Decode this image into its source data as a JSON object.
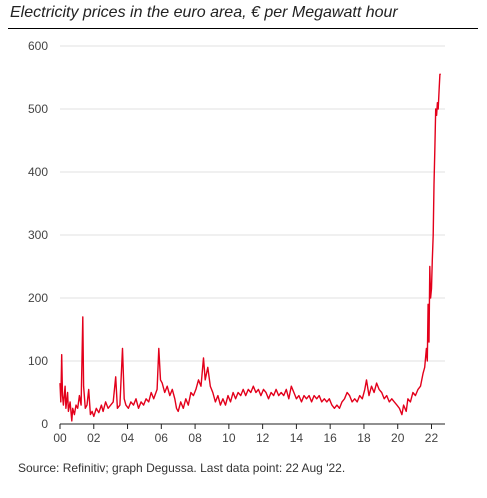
{
  "chart_data": {
    "type": "line",
    "title": "Electricity prices in the euro area, € per Megawatt hour",
    "xlabel": "",
    "ylabel": "",
    "xlim": [
      2000,
      2022.8
    ],
    "ylim": [
      0,
      600
    ],
    "grid": "horizontal",
    "x_ticks": [
      {
        "value": 2000,
        "label": "00"
      },
      {
        "value": 2002,
        "label": "02"
      },
      {
        "value": 2004,
        "label": "04"
      },
      {
        "value": 2006,
        "label": "06"
      },
      {
        "value": 2008,
        "label": "08"
      },
      {
        "value": 2010,
        "label": "10"
      },
      {
        "value": 2012,
        "label": "12"
      },
      {
        "value": 2014,
        "label": "14"
      },
      {
        "value": 2016,
        "label": "16"
      },
      {
        "value": 2018,
        "label": "18"
      },
      {
        "value": 2020,
        "label": "20"
      },
      {
        "value": 2022,
        "label": "22"
      }
    ],
    "y_ticks": [
      {
        "value": 0,
        "label": "0"
      },
      {
        "value": 100,
        "label": "100"
      },
      {
        "value": 200,
        "label": "200"
      },
      {
        "value": 300,
        "label": "300"
      },
      {
        "value": 400,
        "label": "400"
      },
      {
        "value": 500,
        "label": "500"
      },
      {
        "value": 600,
        "label": "600"
      }
    ],
    "series": [
      {
        "color": "#e3001b",
        "points": [
          [
            2000.0,
            65
          ],
          [
            2000.05,
            35
          ],
          [
            2000.1,
            110
          ],
          [
            2000.15,
            45
          ],
          [
            2000.2,
            30
          ],
          [
            2000.3,
            60
          ],
          [
            2000.35,
            25
          ],
          [
            2000.45,
            50
          ],
          [
            2000.5,
            20
          ],
          [
            2000.6,
            35
          ],
          [
            2000.7,
            5
          ],
          [
            2000.75,
            25
          ],
          [
            2000.85,
            15
          ],
          [
            2000.95,
            30
          ],
          [
            2001.05,
            25
          ],
          [
            2001.15,
            45
          ],
          [
            2001.25,
            30
          ],
          [
            2001.35,
            170
          ],
          [
            2001.4,
            60
          ],
          [
            2001.5,
            25
          ],
          [
            2001.6,
            30
          ],
          [
            2001.7,
            55
          ],
          [
            2001.8,
            15
          ],
          [
            2001.9,
            20
          ],
          [
            2002.0,
            12
          ],
          [
            2002.15,
            25
          ],
          [
            2002.3,
            18
          ],
          [
            2002.45,
            30
          ],
          [
            2002.55,
            20
          ],
          [
            2002.7,
            35
          ],
          [
            2002.85,
            25
          ],
          [
            2003.0,
            30
          ],
          [
            2003.15,
            35
          ],
          [
            2003.3,
            75
          ],
          [
            2003.4,
            25
          ],
          [
            2003.55,
            30
          ],
          [
            2003.7,
            120
          ],
          [
            2003.8,
            40
          ],
          [
            2003.9,
            30
          ],
          [
            2004.05,
            25
          ],
          [
            2004.2,
            35
          ],
          [
            2004.35,
            30
          ],
          [
            2004.5,
            40
          ],
          [
            2004.65,
            25
          ],
          [
            2004.8,
            35
          ],
          [
            2004.95,
            30
          ],
          [
            2005.1,
            40
          ],
          [
            2005.25,
            35
          ],
          [
            2005.4,
            50
          ],
          [
            2005.55,
            40
          ],
          [
            2005.75,
            55
          ],
          [
            2005.85,
            120
          ],
          [
            2005.95,
            70
          ],
          [
            2006.05,
            65
          ],
          [
            2006.2,
            50
          ],
          [
            2006.35,
            60
          ],
          [
            2006.5,
            45
          ],
          [
            2006.65,
            55
          ],
          [
            2006.8,
            40
          ],
          [
            2006.9,
            25
          ],
          [
            2007.0,
            20
          ],
          [
            2007.15,
            35
          ],
          [
            2007.3,
            25
          ],
          [
            2007.45,
            40
          ],
          [
            2007.6,
            30
          ],
          [
            2007.75,
            50
          ],
          [
            2007.9,
            45
          ],
          [
            2008.05,
            55
          ],
          [
            2008.2,
            70
          ],
          [
            2008.35,
            60
          ],
          [
            2008.5,
            105
          ],
          [
            2008.6,
            70
          ],
          [
            2008.75,
            90
          ],
          [
            2008.9,
            60
          ],
          [
            2009.05,
            50
          ],
          [
            2009.2,
            35
          ],
          [
            2009.35,
            45
          ],
          [
            2009.5,
            30
          ],
          [
            2009.65,
            40
          ],
          [
            2009.8,
            30
          ],
          [
            2009.95,
            45
          ],
          [
            2010.1,
            35
          ],
          [
            2010.25,
            50
          ],
          [
            2010.4,
            40
          ],
          [
            2010.55,
            50
          ],
          [
            2010.7,
            45
          ],
          [
            2010.85,
            55
          ],
          [
            2011.0,
            45
          ],
          [
            2011.15,
            55
          ],
          [
            2011.3,
            50
          ],
          [
            2011.45,
            60
          ],
          [
            2011.6,
            50
          ],
          [
            2011.75,
            55
          ],
          [
            2011.9,
            45
          ],
          [
            2012.05,
            55
          ],
          [
            2012.2,
            50
          ],
          [
            2012.35,
            40
          ],
          [
            2012.5,
            50
          ],
          [
            2012.65,
            45
          ],
          [
            2012.8,
            55
          ],
          [
            2012.95,
            45
          ],
          [
            2013.1,
            50
          ],
          [
            2013.25,
            45
          ],
          [
            2013.4,
            55
          ],
          [
            2013.55,
            40
          ],
          [
            2013.7,
            60
          ],
          [
            2013.85,
            50
          ],
          [
            2014.0,
            40
          ],
          [
            2014.15,
            45
          ],
          [
            2014.3,
            35
          ],
          [
            2014.45,
            45
          ],
          [
            2014.6,
            40
          ],
          [
            2014.75,
            45
          ],
          [
            2014.9,
            35
          ],
          [
            2015.05,
            45
          ],
          [
            2015.2,
            40
          ],
          [
            2015.35,
            45
          ],
          [
            2015.5,
            35
          ],
          [
            2015.65,
            40
          ],
          [
            2015.8,
            35
          ],
          [
            2015.95,
            40
          ],
          [
            2016.1,
            30
          ],
          [
            2016.25,
            25
          ],
          [
            2016.4,
            30
          ],
          [
            2016.55,
            25
          ],
          [
            2016.7,
            35
          ],
          [
            2016.85,
            40
          ],
          [
            2017.0,
            50
          ],
          [
            2017.15,
            45
          ],
          [
            2017.3,
            35
          ],
          [
            2017.45,
            40
          ],
          [
            2017.6,
            35
          ],
          [
            2017.75,
            45
          ],
          [
            2017.9,
            40
          ],
          [
            2018.05,
            55
          ],
          [
            2018.15,
            70
          ],
          [
            2018.3,
            45
          ],
          [
            2018.45,
            60
          ],
          [
            2018.6,
            50
          ],
          [
            2018.75,
            65
          ],
          [
            2018.9,
            55
          ],
          [
            2019.05,
            50
          ],
          [
            2019.2,
            40
          ],
          [
            2019.35,
            45
          ],
          [
            2019.5,
            35
          ],
          [
            2019.65,
            40
          ],
          [
            2019.8,
            35
          ],
          [
            2019.95,
            30
          ],
          [
            2020.1,
            25
          ],
          [
            2020.25,
            15
          ],
          [
            2020.35,
            30
          ],
          [
            2020.5,
            20
          ],
          [
            2020.6,
            40
          ],
          [
            2020.75,
            35
          ],
          [
            2020.9,
            50
          ],
          [
            2021.05,
            45
          ],
          [
            2021.2,
            55
          ],
          [
            2021.35,
            60
          ],
          [
            2021.5,
            80
          ],
          [
            2021.6,
            90
          ],
          [
            2021.7,
            120
          ],
          [
            2021.75,
            100
          ],
          [
            2021.8,
            190
          ],
          [
            2021.85,
            130
          ],
          [
            2021.9,
            250
          ],
          [
            2021.95,
            200
          ],
          [
            2022.0,
            215
          ],
          [
            2022.05,
            260
          ],
          [
            2022.1,
            300
          ],
          [
            2022.15,
            380
          ],
          [
            2022.2,
            440
          ],
          [
            2022.25,
            500
          ],
          [
            2022.3,
            490
          ],
          [
            2022.35,
            510
          ],
          [
            2022.4,
            500
          ],
          [
            2022.45,
            530
          ],
          [
            2022.5,
            555
          ],
          [
            2022.55,
            555
          ]
        ]
      }
    ]
  },
  "source_note": "Source: Refinitiv; graph Degussa. Last data point: 22 Aug '22."
}
